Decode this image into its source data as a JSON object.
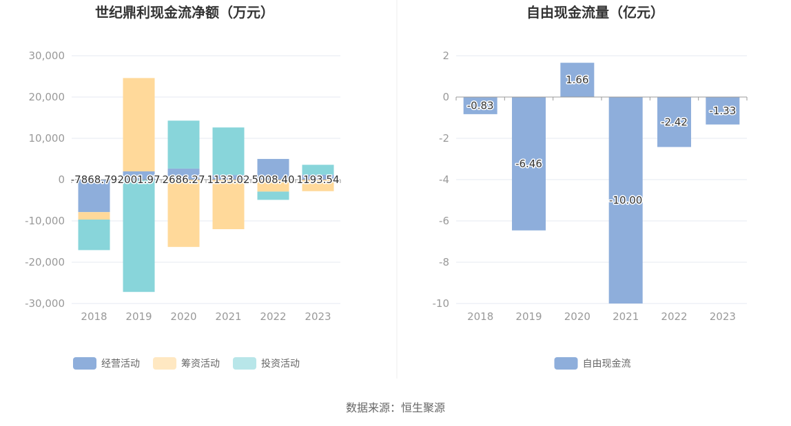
{
  "source_text": "数据来源：恒生聚源",
  "chart_data": [
    {
      "type": "bar",
      "stacked": true,
      "title": "世纪鼎利现金流净额（万元）",
      "categories": [
        "2018",
        "2019",
        "2020",
        "2021",
        "2022",
        "2023"
      ],
      "ylim": [
        -30000,
        30000
      ],
      "yticks": [
        "30,000",
        "20,000",
        "10,000",
        "0",
        "-10,000",
        "-20,000",
        "-30,000"
      ],
      "ytick_values": [
        30000,
        20000,
        10000,
        0,
        -10000,
        -20000,
        -30000
      ],
      "grid": true,
      "legend_position": "bottom",
      "series": [
        {
          "name": "经营活动",
          "color": "#8eaedb",
          "values": [
            -7868.79,
            2001.97,
            2686.27,
            1133.02,
            5008.4,
            1193.54
          ]
        },
        {
          "name": "筹资活动",
          "color": "#ffd99a",
          "values": [
            -1800,
            22600,
            -16300,
            -12000,
            -2900,
            -2800
          ]
        },
        {
          "name": "投资活动",
          "color": "#88d5da",
          "values": [
            -7400,
            -27200,
            11600,
            11500,
            -2000,
            2400
          ]
        }
      ],
      "data_labels": [
        "-7868.79",
        "2001.97",
        "2686.27",
        "1133.02",
        "5008.40",
        "1193.54"
      ]
    },
    {
      "type": "bar",
      "title": "自由现金流量（亿元）",
      "categories": [
        "2018",
        "2019",
        "2020",
        "2021",
        "2022",
        "2023"
      ],
      "ylim": [
        -10,
        2
      ],
      "yticks": [
        "2",
        "0",
        "-2",
        "-4",
        "-6",
        "-8",
        "-10"
      ],
      "ytick_values": [
        2,
        0,
        -2,
        -4,
        -6,
        -8,
        -10
      ],
      "grid": true,
      "legend_position": "bottom",
      "series": [
        {
          "name": "自由现金流",
          "color": "#8eaedb",
          "values": [
            -0.83,
            -6.46,
            1.66,
            -10.0,
            -2.42,
            -1.33
          ]
        }
      ],
      "data_labels": [
        "-0.83",
        "-6.46",
        "1.66",
        "-10.00",
        "-2.42",
        "-1.33"
      ]
    }
  ]
}
